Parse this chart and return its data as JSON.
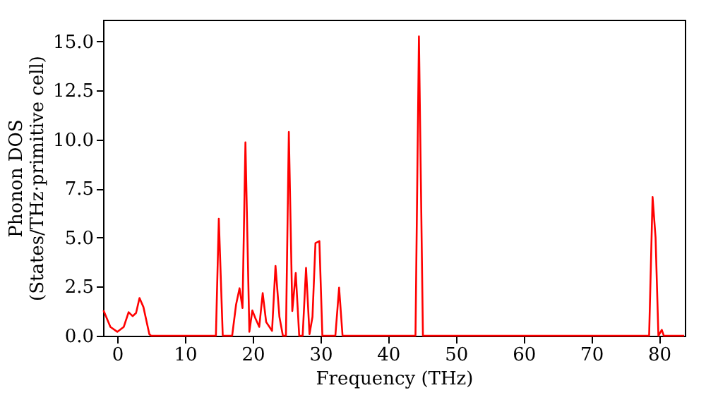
{
  "chart_data": {
    "type": "line",
    "xlabel": "Frequency (THz)",
    "ylabel": "Phonon DOS\n(States/THz·primitive cell)",
    "xlim": [
      -2.1,
      83.8
    ],
    "ylim": [
      0,
      16.1
    ],
    "xticks": [
      0,
      10,
      20,
      30,
      40,
      50,
      60,
      70,
      80
    ],
    "yticks": [
      {
        "value": 0,
        "label": "0.0"
      },
      {
        "value": 2.5,
        "label": "2.5"
      },
      {
        "value": 5,
        "label": "5.0"
      },
      {
        "value": 7.5,
        "label": "7.5"
      },
      {
        "value": 10,
        "label": "10.0"
      },
      {
        "value": 12.5,
        "label": "12.5"
      },
      {
        "value": 15,
        "label": "15.0"
      }
    ],
    "grid": false,
    "series": [
      {
        "color": "#ff0000",
        "x": [
          -2.04,
          -1.02,
          0,
          0.95,
          1.67,
          2.26,
          2.77,
          3.28,
          3.86,
          4.73,
          5.0,
          14.56,
          14.99,
          15.57,
          16.96,
          17.54,
          18.05,
          18.49,
          18.92,
          19.5,
          19.94,
          20.38,
          20.96,
          21.47,
          21.98,
          22.85,
          23.36,
          23.94,
          24.45,
          24.9,
          25.33,
          25.84,
          26.35,
          26.86,
          27.37,
          27.87,
          28.38,
          28.82,
          29.26,
          29.84,
          30.28,
          32.2,
          32.75,
          33.26,
          44.03,
          44.54,
          45.13,
          78.53,
          79.04,
          79.48,
          79.9,
          80.4,
          80.7,
          83.7
        ],
        "values": [
          1.29,
          0.45,
          0.2,
          0.45,
          1.2,
          1.0,
          1.16,
          1.92,
          1.46,
          0.08,
          0,
          0,
          5.96,
          0,
          0,
          1.59,
          2.42,
          1.41,
          9.85,
          0.2,
          1.29,
          0.9,
          0.45,
          2.17,
          0.7,
          0.25,
          3.56,
          0.96,
          0,
          0,
          10.38,
          1.26,
          3.2,
          0,
          0,
          3.46,
          0.08,
          0.96,
          4.72,
          4.82,
          0,
          0,
          2.45,
          0,
          0,
          15.25,
          0,
          0,
          7.07,
          5.0,
          0,
          0.3,
          0,
          0
        ]
      }
    ]
  }
}
